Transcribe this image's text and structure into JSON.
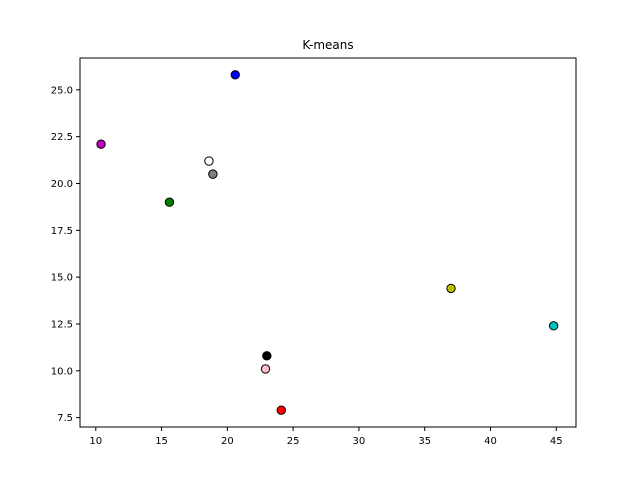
{
  "chart_data": {
    "type": "scatter",
    "title": "K-means",
    "xlabel": "",
    "ylabel": "",
    "xlim": [
      8.8,
      46.5
    ],
    "ylim": [
      7.0,
      26.7
    ],
    "xticks": [
      10,
      15,
      20,
      25,
      30,
      35,
      40,
      45
    ],
    "yticks": [
      7.5,
      10.0,
      12.5,
      15.0,
      17.5,
      20.0,
      22.5,
      25.0
    ],
    "ytick_labels": [
      "7.5",
      "10.0",
      "12.5",
      "15.0",
      "17.5",
      "20.0",
      "22.5",
      "25.0"
    ],
    "grid": false,
    "points": [
      {
        "x": 20.6,
        "y": 25.8,
        "color": "#0000ff"
      },
      {
        "x": 10.4,
        "y": 22.1,
        "color": "#bf00bf"
      },
      {
        "x": 18.6,
        "y": 21.2,
        "color": "#ffffff"
      },
      {
        "x": 18.9,
        "y": 20.5,
        "color": "#808080"
      },
      {
        "x": 15.6,
        "y": 19.0,
        "color": "#008000"
      },
      {
        "x": 37.0,
        "y": 14.4,
        "color": "#bfbf00"
      },
      {
        "x": 44.8,
        "y": 12.4,
        "color": "#00bfbf"
      },
      {
        "x": 23.0,
        "y": 10.8,
        "color": "#000000"
      },
      {
        "x": 22.9,
        "y": 10.1,
        "color": "#ffc0cb"
      },
      {
        "x": 24.1,
        "y": 7.9,
        "color": "#ff0000"
      }
    ]
  }
}
